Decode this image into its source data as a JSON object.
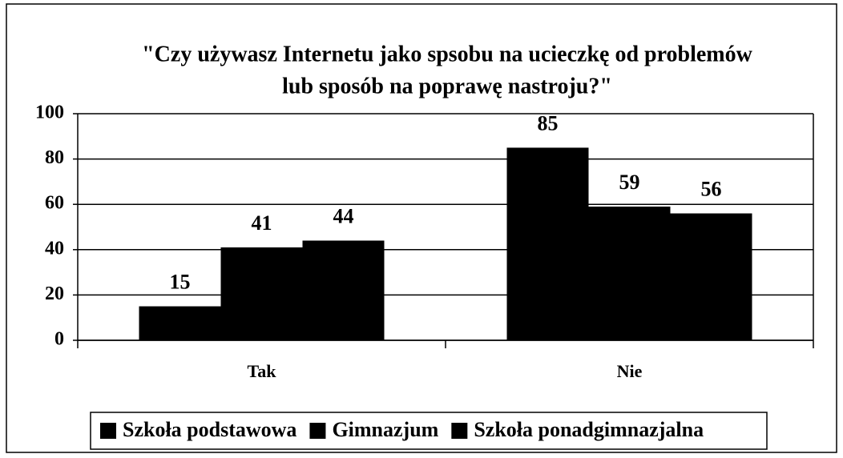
{
  "chart_data": {
    "type": "bar",
    "title": [
      "\"Czy używasz Internetu jako spsobu na ucieczkę od problemów",
      "lub sposób na poprawę nastroju?\""
    ],
    "categories": [
      "Tak",
      "Nie"
    ],
    "series": [
      {
        "name": "Szkoła podstawowa",
        "color": "#000000",
        "values": [
          15,
          85
        ]
      },
      {
        "name": "Gimnazjum",
        "color": "#000000",
        "values": [
          41,
          59
        ]
      },
      {
        "name": "Szkoła ponadgimnazjalna",
        "color": "#000000",
        "values": [
          44,
          56
        ]
      }
    ],
    "ylim": [
      0,
      100
    ],
    "yticks": [
      0,
      20,
      40,
      60,
      80,
      100
    ],
    "grid": true,
    "legend": "bottom"
  }
}
